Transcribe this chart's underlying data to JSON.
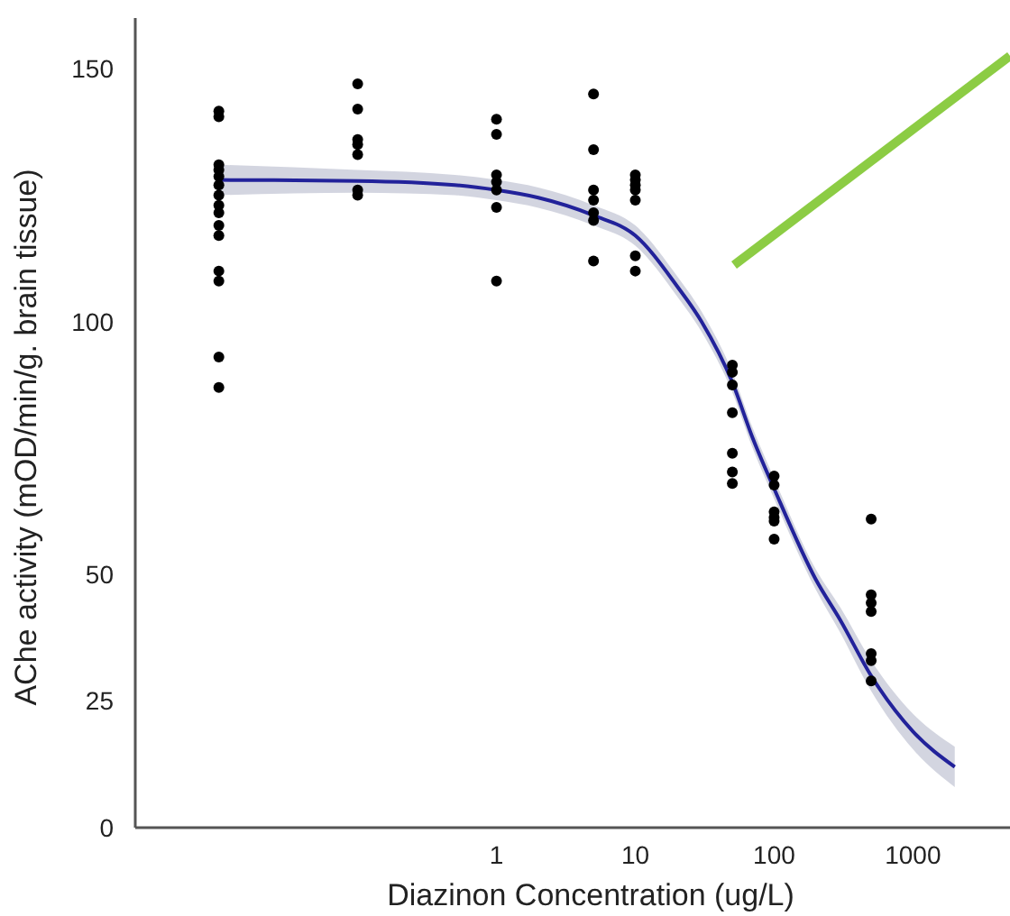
{
  "chart_data": {
    "type": "scatter",
    "xlabel": "Diazinon Concentration (ug/L)",
    "ylabel": "AChe activity (mOD/min/g. brain tissue)",
    "log": "x",
    "xlim": [
      0.0025,
      5000
    ],
    "xticks": [
      1,
      10,
      100,
      1000
    ],
    "ylim": [
      0,
      160
    ],
    "yticks": [
      0,
      25,
      50,
      100,
      150
    ],
    "grid": false,
    "marker": "circle",
    "series": [
      {
        "color": "#000000",
        "x": [
          0.01,
          0.01,
          0.01,
          0.01,
          0.01,
          0.01,
          0.01,
          0.01,
          0.01,
          0.01,
          0.01,
          0.01,
          0.01,
          0.01,
          0.01,
          0.1,
          0.1,
          0.1,
          0.1,
          0.1,
          0.1,
          0.1,
          1,
          1,
          1,
          1,
          1,
          1,
          1,
          5,
          5,
          5,
          5,
          5,
          5,
          5,
          10,
          10,
          10,
          10,
          10,
          10,
          10,
          50,
          50,
          50,
          50,
          50,
          50,
          50,
          100,
          100,
          100,
          100,
          100,
          100,
          500,
          500,
          500,
          500,
          500,
          500,
          500
        ],
        "values": [
          141.6,
          140.5,
          131,
          130,
          128.7,
          127,
          125,
          123,
          121.5,
          119,
          117,
          110,
          108,
          93,
          87,
          147,
          142,
          136,
          135,
          133,
          126,
          125,
          140,
          137,
          129,
          127.6,
          126,
          122.6,
          108,
          145,
          134,
          126,
          124,
          121.5,
          120,
          112,
          129,
          128,
          127,
          126,
          124,
          113,
          110,
          91.4,
          90,
          87.5,
          82,
          74,
          70.3,
          68,
          69.5,
          67.7,
          62.4,
          61.3,
          60.6,
          57,
          61,
          46,
          44.4,
          42.7,
          34.4,
          33,
          29
        ]
      },
      {
        "type": "line",
        "color": "#22229a",
        "marker": "none",
        "line_style": "solid",
        "x": [
          0.01,
          0.1,
          0.5,
          1,
          2,
          5,
          10,
          20,
          30,
          50,
          70,
          100,
          200,
          300,
          500,
          1000,
          2000
        ],
        "values": [
          128,
          127.8,
          127,
          126,
          124.5,
          121,
          117,
          107,
          100,
          88,
          77,
          67,
          49,
          41,
          30,
          19,
          12
        ],
        "lower": [
          125,
          125.5,
          125,
          124,
          122.5,
          119,
          115,
          105,
          98,
          86,
          75,
          65,
          47,
          38.5,
          27,
          15.5,
          8
        ],
        "upper": [
          131,
          130,
          129,
          128,
          126.5,
          123,
          119,
          109,
          102,
          90,
          79,
          69,
          51,
          43.5,
          33,
          22.5,
          16
        ]
      }
    ]
  }
}
